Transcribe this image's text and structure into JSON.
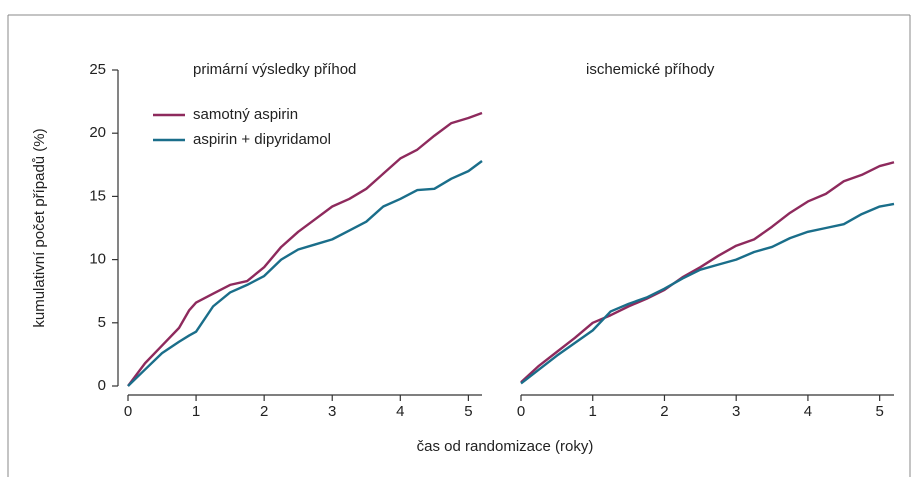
{
  "ylabel": "kumulativní počet případů (%)",
  "xlabel": "čas od randomizace (roky)",
  "chart_data": [
    {
      "type": "line",
      "title": "primární výsledky příhod",
      "legend": "upper left",
      "x": [
        0,
        0.25,
        0.5,
        0.75,
        0.9,
        1,
        1.25,
        1.5,
        1.75,
        2,
        2.25,
        2.5,
        2.75,
        3,
        3.25,
        3.5,
        3.75,
        4,
        4.25,
        4.5,
        4.75,
        5,
        5.2
      ],
      "series": [
        {
          "name": "samotný aspirin",
          "color": "#8e2a5d",
          "values": [
            0,
            1.8,
            3.2,
            4.6,
            6,
            6.6,
            7.3,
            8.0,
            8.3,
            9.4,
            11,
            12.2,
            13.2,
            14.2,
            14.8,
            15.6,
            16.8,
            18,
            18.7,
            19.8,
            20.8,
            21.2,
            21.6
          ]
        },
        {
          "name": "aspirin + dipyridamol",
          "color": "#1a6e8a",
          "values": [
            0,
            1.3,
            2.6,
            3.5,
            4.0,
            4.3,
            6.3,
            7.4,
            8.0,
            8.7,
            10,
            10.8,
            11.2,
            11.6,
            12.3,
            13.0,
            14.2,
            14.8,
            15.5,
            15.6,
            16.4,
            17.0,
            17.8
          ]
        }
      ],
      "xlim": [
        0,
        5.2
      ],
      "xticks": [
        0,
        1,
        2,
        3,
        4,
        5
      ],
      "ylim": [
        0,
        25
      ],
      "yticks": [
        0,
        5,
        10,
        15,
        20,
        25
      ]
    },
    {
      "type": "line",
      "title": "ischemické příhody",
      "x": [
        0,
        0.25,
        0.5,
        0.75,
        1,
        1.25,
        1.5,
        1.75,
        2,
        2.25,
        2.5,
        2.75,
        3,
        3.25,
        3.5,
        3.75,
        4,
        4.25,
        4.5,
        4.75,
        5,
        5.2
      ],
      "series": [
        {
          "color": "#8e2a5d",
          "values": [
            0.3,
            1.6,
            2.7,
            3.8,
            5.0,
            5.6,
            6.3,
            6.9,
            7.6,
            8.6,
            9.4,
            10.3,
            11.1,
            11.6,
            12.6,
            13.7,
            14.6,
            15.2,
            16.2,
            16.7,
            17.4,
            17.7
          ]
        },
        {
          "color": "#1a6e8a",
          "values": [
            0.2,
            1.3,
            2.4,
            3.4,
            4.4,
            5.9,
            6.5,
            7.0,
            7.7,
            8.5,
            9.2,
            9.6,
            10.0,
            10.6,
            11.0,
            11.7,
            12.2,
            12.5,
            12.8,
            13.6,
            14.2,
            14.4
          ]
        }
      ],
      "xlim": [
        0,
        5.2
      ],
      "xticks": [
        0,
        1,
        2,
        3,
        4,
        5
      ],
      "ylim": [
        0,
        25
      ]
    }
  ]
}
